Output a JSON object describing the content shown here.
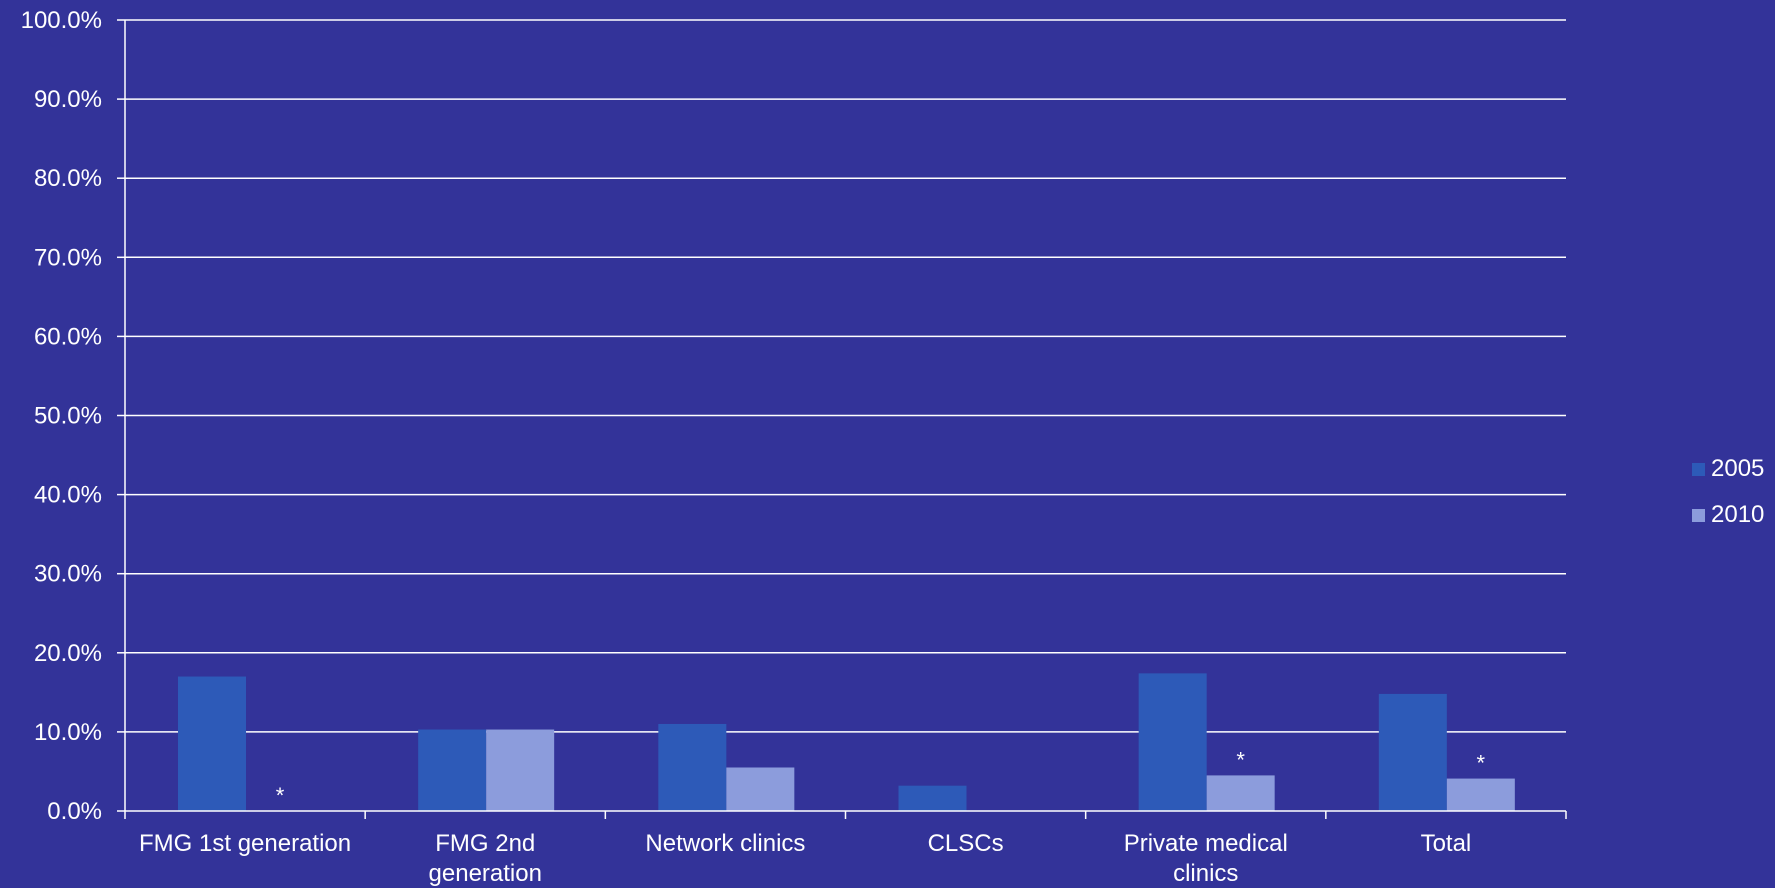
{
  "colors": {
    "background": "#333399",
    "axis": "#ffffff",
    "text": "#ffffff",
    "series_2005": "#2d5ab8",
    "series_2010": "#8c9cdc"
  },
  "chart_data": {
    "type": "bar",
    "categories": [
      [
        "FMG 1st generation"
      ],
      [
        "FMG 2nd",
        "generation"
      ],
      [
        "Network clinics"
      ],
      [
        "CLSCs"
      ],
      [
        "Private medical",
        "clinics"
      ],
      [
        "Total"
      ]
    ],
    "series": [
      {
        "name": "2005",
        "values": [
          17.0,
          10.3,
          11.0,
          3.2,
          17.4,
          14.8
        ]
      },
      {
        "name": "2010",
        "values": [
          0,
          10.3,
          5.5,
          0,
          4.5,
          4.1
        ]
      }
    ],
    "annotations": [
      {
        "category": 0,
        "series": 1,
        "text": "*"
      },
      {
        "category": 4,
        "series": 1,
        "text": "*"
      },
      {
        "category": 5,
        "series": 1,
        "text": "*"
      }
    ],
    "yticks": [
      "0.0%",
      "10.0%",
      "20.0%",
      "30.0%",
      "40.0%",
      "50.0%",
      "60.0%",
      "70.0%",
      "80.0%",
      "90.0%",
      "100.0%"
    ],
    "ylim": [
      0,
      100
    ],
    "grid": true,
    "legend_position": "right"
  }
}
